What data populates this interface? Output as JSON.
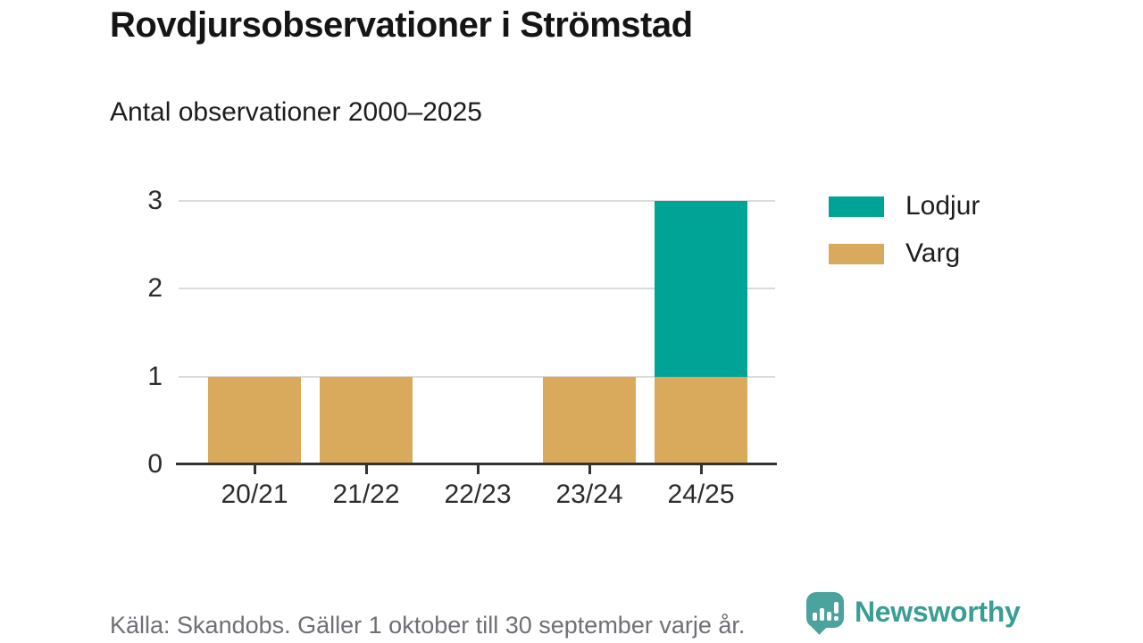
{
  "header": {
    "title": "Rovdjursobservationer i Strömstad",
    "subtitle": "Antal observationer 2000–2025"
  },
  "chart_data": {
    "type": "bar",
    "stacked": true,
    "title": "Rovdjursobservationer i Strömstad",
    "subtitle": "Antal observationer 2000–2025",
    "xlabel": "",
    "ylabel": "",
    "categories": [
      "20/21",
      "21/22",
      "22/23",
      "23/24",
      "24/25"
    ],
    "series": [
      {
        "name": "Lodjur",
        "color": "#00a497",
        "values": [
          0,
          0,
          0,
          0,
          2
        ]
      },
      {
        "name": "Varg",
        "color": "#d9a95c",
        "values": [
          1,
          1,
          0,
          1,
          1
        ]
      }
    ],
    "stack_order_bottom_to_top": [
      "Varg",
      "Lodjur"
    ],
    "yticks": [
      0,
      1,
      2,
      3
    ],
    "ylim": [
      0,
      3
    ],
    "grid": "horizontal-only",
    "gridline_color": "#dcdcdc",
    "axis_color": "#333333",
    "legend_position": "top-right"
  },
  "footer": {
    "source": "Källa: Skandobs. Gäller 1 oktober till 30 september varje år.",
    "brand": "Newsworthy",
    "brand_color": "#3a9d96",
    "brand_icon_color": "#4aa39c",
    "brand_icon": "newsworthy-speech-bubble-bar-chart-icon"
  }
}
